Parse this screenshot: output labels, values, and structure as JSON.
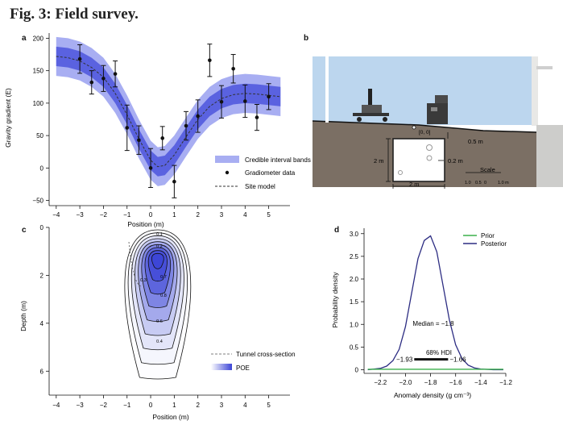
{
  "figure": {
    "title": "Fig. 3: Field survey.",
    "panel_labels": [
      "a",
      "b",
      "c",
      "d"
    ]
  },
  "colors": {
    "band_outer": "#a8aef2",
    "band_inner": "#5a62e0",
    "model_line": "#333333",
    "sky": "#bcd6ee",
    "ground": "#7b6f64",
    "posterior": "#2c2c82",
    "prior": "#3bb04b",
    "poe": "#3b44d6"
  },
  "panel_b": {
    "origin_label": "[0, 0]",
    "label_05": "0.5 m",
    "label_2m_vert": "2 m",
    "label_2m_horiz": "2 m",
    "label_02": "0.2 m",
    "scale_label": "Scale",
    "scale_ticks": [
      "1.0",
      "0.5",
      "0",
      "1.0 m"
    ]
  },
  "chart_data": [
    {
      "panel": "a",
      "type": "scatter",
      "xlabel": "Position (m)",
      "ylabel": "Gravity gradient (E)",
      "xlim": [
        -4.3,
        5.9
      ],
      "ylim": [
        -58,
        208
      ],
      "xticks": [
        -4,
        -3,
        -2,
        -1,
        0,
        1,
        2,
        3,
        4,
        5
      ],
      "xticklabels": [
        "−4",
        "−3",
        "−2",
        "−1",
        "0",
        "1",
        "2",
        "3",
        "4",
        "5"
      ],
      "yticks": [
        -50,
        0,
        50,
        100,
        150,
        200
      ],
      "yticklabels": [
        "−50",
        "0",
        "50",
        "100",
        "150",
        "200"
      ],
      "legend": {
        "position": "bottom-right",
        "entries": [
          "Credible interval bands",
          "Gradiometer data",
          "Site model"
        ]
      },
      "site_model": {
        "x": [
          -4,
          -3.5,
          -3,
          -2.5,
          -2,
          -1.5,
          -1,
          -0.5,
          0,
          0.3,
          0.6,
          1,
          1.5,
          2,
          2.5,
          3,
          3.5,
          4,
          4.5,
          5,
          5.5
        ],
        "y": [
          172,
          170,
          165,
          155,
          140,
          115,
          82,
          45,
          12,
          2,
          4,
          20,
          48,
          75,
          95,
          107,
          113,
          115,
          114,
          112,
          110
        ]
      },
      "band_inner_half_width": 15,
      "band_outer_half_width": 30,
      "gradiometer_data": {
        "x": [
          -3,
          -2.5,
          -2,
          -1.5,
          -1,
          -0.5,
          0,
          0.5,
          1,
          1.5,
          2,
          2.5,
          3,
          3.5,
          4,
          4.5,
          5
        ],
        "y": [
          168,
          132,
          138,
          145,
          62,
          43,
          0,
          46,
          -21,
          65,
          80,
          166,
          102,
          153,
          103,
          78,
          110
        ],
        "err": [
          22,
          18,
          20,
          20,
          35,
          22,
          30,
          18,
          25,
          22,
          25,
          25,
          25,
          22,
          25,
          20,
          20
        ]
      }
    },
    {
      "panel": "c",
      "type": "heatmap",
      "xlabel": "Position (m)",
      "ylabel": "Depth (m)",
      "xlim": [
        -4.3,
        5.9
      ],
      "ylim": [
        0,
        7
      ],
      "xticks": [
        -4,
        -3,
        -2,
        -1,
        0,
        1,
        2,
        3,
        4,
        5
      ],
      "xticklabels": [
        "−4",
        "−3",
        "−2",
        "−1",
        "0",
        "1",
        "2",
        "3",
        "4",
        "5"
      ],
      "yticks": [
        0,
        2,
        4,
        6
      ],
      "yticklabels": [
        "0",
        "2",
        "4",
        "6"
      ],
      "contour_levels": [
        0.1,
        0.2,
        0.3,
        0.4,
        0.5,
        0.6,
        0.7,
        0.8,
        0.9
      ],
      "contour_labels": [
        "0.1",
        "0.2",
        "0.4",
        "0.6",
        "0.7",
        "0.8",
        "0.9",
        "0.3"
      ],
      "legend": {
        "position": "bottom-right",
        "entries": [
          "Tunnel cross-section",
          "POE"
        ]
      }
    },
    {
      "panel": "d",
      "type": "line",
      "xlabel": "Anomaly density (g cm⁻³)",
      "ylabel": "Probability density",
      "xlim": [
        -2.33,
        -1.2
      ],
      "ylim": [
        -0.08,
        3.12
      ],
      "xticks": [
        -2.2,
        -2.0,
        -1.8,
        -1.6,
        -1.4,
        -1.2
      ],
      "xticklabels": [
        "−2.2",
        "−2.0",
        "−1.8",
        "−1.6",
        "−1.4",
        "−1.2"
      ],
      "yticks": [
        0,
        0.5,
        1.0,
        1.5,
        2.0,
        2.5,
        3.0
      ],
      "yticklabels": [
        "0",
        "0.5",
        "1.0",
        "1.5",
        "2.0",
        "2.5",
        "3.0"
      ],
      "legend": {
        "position": "top-right",
        "entries": [
          "Prior",
          "Posterior"
        ]
      },
      "series": [
        {
          "name": "Posterior",
          "x": [
            -2.3,
            -2.2,
            -2.15,
            -2.1,
            -2.05,
            -2.0,
            -1.95,
            -1.9,
            -1.85,
            -1.8,
            -1.75,
            -1.7,
            -1.65,
            -1.6,
            -1.55,
            -1.5,
            -1.45,
            -1.4,
            -1.3,
            -1.22
          ],
          "y": [
            0.0,
            0.03,
            0.08,
            0.2,
            0.45,
            0.95,
            1.7,
            2.45,
            2.85,
            2.95,
            2.6,
            1.85,
            1.1,
            0.55,
            0.25,
            0.1,
            0.04,
            0.015,
            0.0,
            0.0
          ]
        },
        {
          "name": "Prior",
          "x": [
            -2.3,
            -1.22
          ],
          "y": [
            0.01,
            0.01
          ]
        }
      ],
      "median_label": "Median = −1.8",
      "hdi": {
        "label": "68% HDI",
        "low": -1.93,
        "high": -1.66,
        "low_label": "−1.93",
        "high_label": "−1.66"
      }
    }
  ]
}
